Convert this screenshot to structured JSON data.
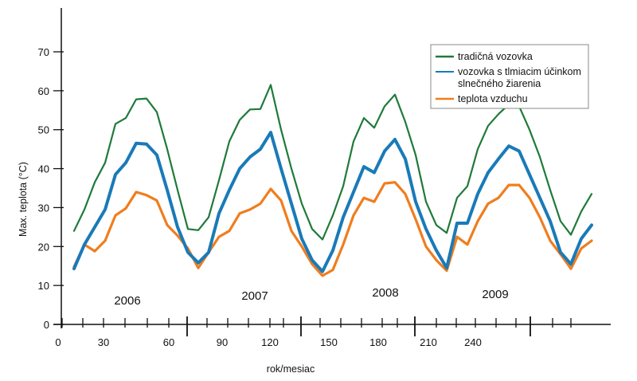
{
  "chart_data": {
    "type": "line",
    "title": "",
    "xlabel": "rok/mesiac",
    "ylabel": "Max. teplota (°C)",
    "ylim": [
      0,
      70
    ],
    "yticks": [
      0,
      10,
      20,
      30,
      40,
      50,
      60,
      70
    ],
    "xtick_labels": [
      {
        "tick": 0,
        "label": "0"
      },
      {
        "tick": 2,
        "label": "30"
      },
      {
        "tick": 5,
        "label": "60"
      },
      {
        "tick": 8,
        "label": "90"
      },
      {
        "tick": 10,
        "label": "120"
      },
      {
        "tick": 13,
        "label": "150"
      },
      {
        "tick": 16,
        "label": "180"
      },
      {
        "tick": 18,
        "label": "210"
      },
      {
        "tick": 20,
        "label": "240"
      }
    ],
    "year_labels": [
      "2006",
      "2007",
      "2008",
      "2009"
    ],
    "grid": false,
    "legend_position": "top-right",
    "series": [
      {
        "name": "tradičná vozovka",
        "color": "#1f7a3a",
        "values": [
          24,
          29.5,
          36.5,
          41.5,
          51.5,
          53,
          57.8,
          58,
          54.5,
          45,
          34.5,
          24.5,
          24.2,
          27.5,
          37,
          47,
          52.5,
          55.2,
          55.3,
          61.5,
          50,
          40,
          31,
          24.5,
          21.8,
          28,
          35.5,
          47,
          53,
          50.5,
          56,
          59,
          52,
          43.5,
          31.5,
          25.5,
          23.5,
          32.5,
          35.5,
          45,
          51,
          54,
          56.5,
          56,
          50,
          43,
          34.5,
          26.5,
          23,
          29,
          33.5
        ]
      },
      {
        "name": "vozovka s tlmiacim účinkom slnečného žiarenia",
        "color": "#1a7ab8",
        "values": [
          14.3,
          20.5,
          25,
          29.5,
          38.5,
          41.5,
          46.5,
          46.3,
          43.5,
          34.5,
          25,
          18.5,
          15.8,
          18.5,
          28.5,
          34.5,
          40,
          43,
          45,
          49.3,
          40,
          31,
          22,
          16.5,
          13.6,
          19,
          27.5,
          34,
          40.5,
          39,
          44.5,
          47.5,
          42.5,
          31.5,
          24.5,
          19,
          14.5,
          26,
          26,
          33.5,
          39,
          42.5,
          45.8,
          44.5,
          38.5,
          32.5,
          26.5,
          18.5,
          15.5,
          22,
          25.5
        ]
      },
      {
        "name": "teplota vzduchu",
        "color": "#f07d1e",
        "values": [
          14.8,
          20.5,
          18.8,
          21.5,
          28,
          29.8,
          34,
          33.2,
          31.8,
          25.5,
          22.8,
          19.5,
          14.5,
          18.5,
          22.5,
          24,
          28.5,
          29.5,
          31,
          34.8,
          31.8,
          24,
          20,
          15.5,
          12.5,
          14,
          20.5,
          28,
          32.5,
          31.5,
          36.2,
          36.5,
          33.5,
          27,
          20,
          16.5,
          13.8,
          22.5,
          20.5,
          26.5,
          31,
          32.5,
          35.8,
          35.8,
          32.5,
          27.5,
          21.5,
          18,
          14.3,
          19.5,
          21.5
        ]
      }
    ]
  }
}
